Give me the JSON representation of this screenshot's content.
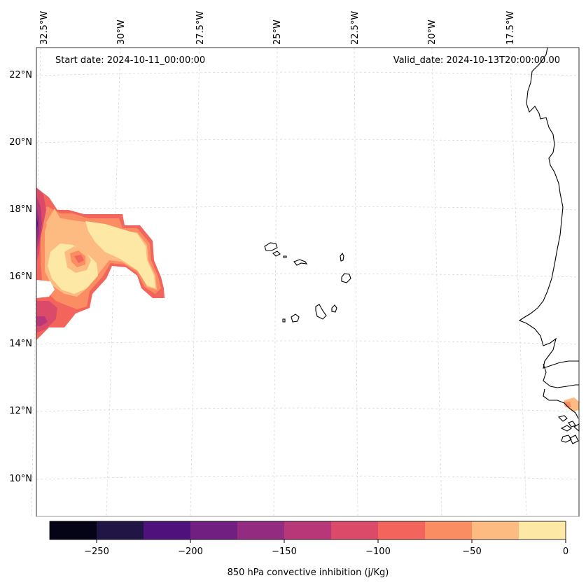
{
  "header": {
    "start_date": "Start date: 2024-10-11_00:00:00",
    "valid_date": "Valid_date: 2024-10-13T20:00:00.00"
  },
  "map": {
    "longitude_labels": [
      "32.5°W",
      "30°W",
      "27.5°W",
      "25°W",
      "22.5°W",
      "20°W",
      "17.5°W"
    ],
    "latitude_labels": [
      "22°N",
      "20°N",
      "18°N",
      "16°N",
      "14°N",
      "12°N",
      "10°N"
    ],
    "gridlines": "dashed"
  },
  "colorbar": {
    "label": "850 hPa convective inhibition (j/Kg)",
    "tick_labels": [
      "−250",
      "−200",
      "−150",
      "−100",
      "−50",
      "0"
    ],
    "bounds": [
      -275,
      0
    ],
    "step": 25,
    "colors": [
      "#050417",
      "#211546",
      "#4f117b",
      "#721f82",
      "#932b80",
      "#b73779",
      "#dc4a6a",
      "#f3655c",
      "#fb8d62",
      "#febb81",
      "#fde9a5"
    ]
  }
}
